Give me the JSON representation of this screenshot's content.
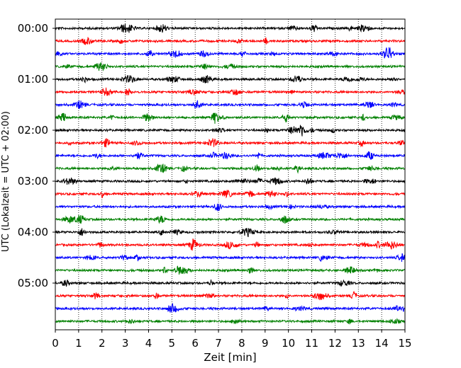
{
  "chart_data": {
    "type": "line",
    "title": "",
    "xlabel": "Zeit  [min]",
    "ylabel": "UTC (Lokalzeit = UTC + 02:00)",
    "xlim": [
      0,
      15
    ],
    "x_ticks": [
      0,
      1,
      2,
      3,
      4,
      5,
      6,
      7,
      8,
      9,
      10,
      11,
      12,
      13,
      14,
      15
    ],
    "y_tick_labels": [
      "00:00",
      "01:00",
      "02:00",
      "03:00",
      "04:00",
      "05:00"
    ],
    "rows_per_label": 4,
    "row_minutes": 15,
    "grid": "vertical dotted at each minute",
    "row_colors": [
      "#000000",
      "#ff0000",
      "#0000ff",
      "#008000"
    ],
    "series": [
      {
        "start": "00:00",
        "color": "black"
      },
      {
        "start": "00:15",
        "color": "red"
      },
      {
        "start": "00:30",
        "color": "blue"
      },
      {
        "start": "00:45",
        "color": "green"
      },
      {
        "start": "01:00",
        "color": "black"
      },
      {
        "start": "01:15",
        "color": "red"
      },
      {
        "start": "01:30",
        "color": "blue"
      },
      {
        "start": "01:45",
        "color": "green"
      },
      {
        "start": "02:00",
        "color": "black"
      },
      {
        "start": "02:15",
        "color": "red"
      },
      {
        "start": "02:30",
        "color": "blue"
      },
      {
        "start": "02:45",
        "color": "green"
      },
      {
        "start": "03:00",
        "color": "black"
      },
      {
        "start": "03:15",
        "color": "red"
      },
      {
        "start": "03:30",
        "color": "blue"
      },
      {
        "start": "03:45",
        "color": "green"
      },
      {
        "start": "04:00",
        "color": "black"
      },
      {
        "start": "04:15",
        "color": "red"
      },
      {
        "start": "04:30",
        "color": "blue"
      },
      {
        "start": "04:45",
        "color": "green"
      },
      {
        "start": "05:00",
        "color": "black"
      },
      {
        "start": "05:15",
        "color": "red"
      },
      {
        "start": "05:30",
        "color": "blue"
      },
      {
        "start": "05:45",
        "color": "green"
      }
    ]
  }
}
